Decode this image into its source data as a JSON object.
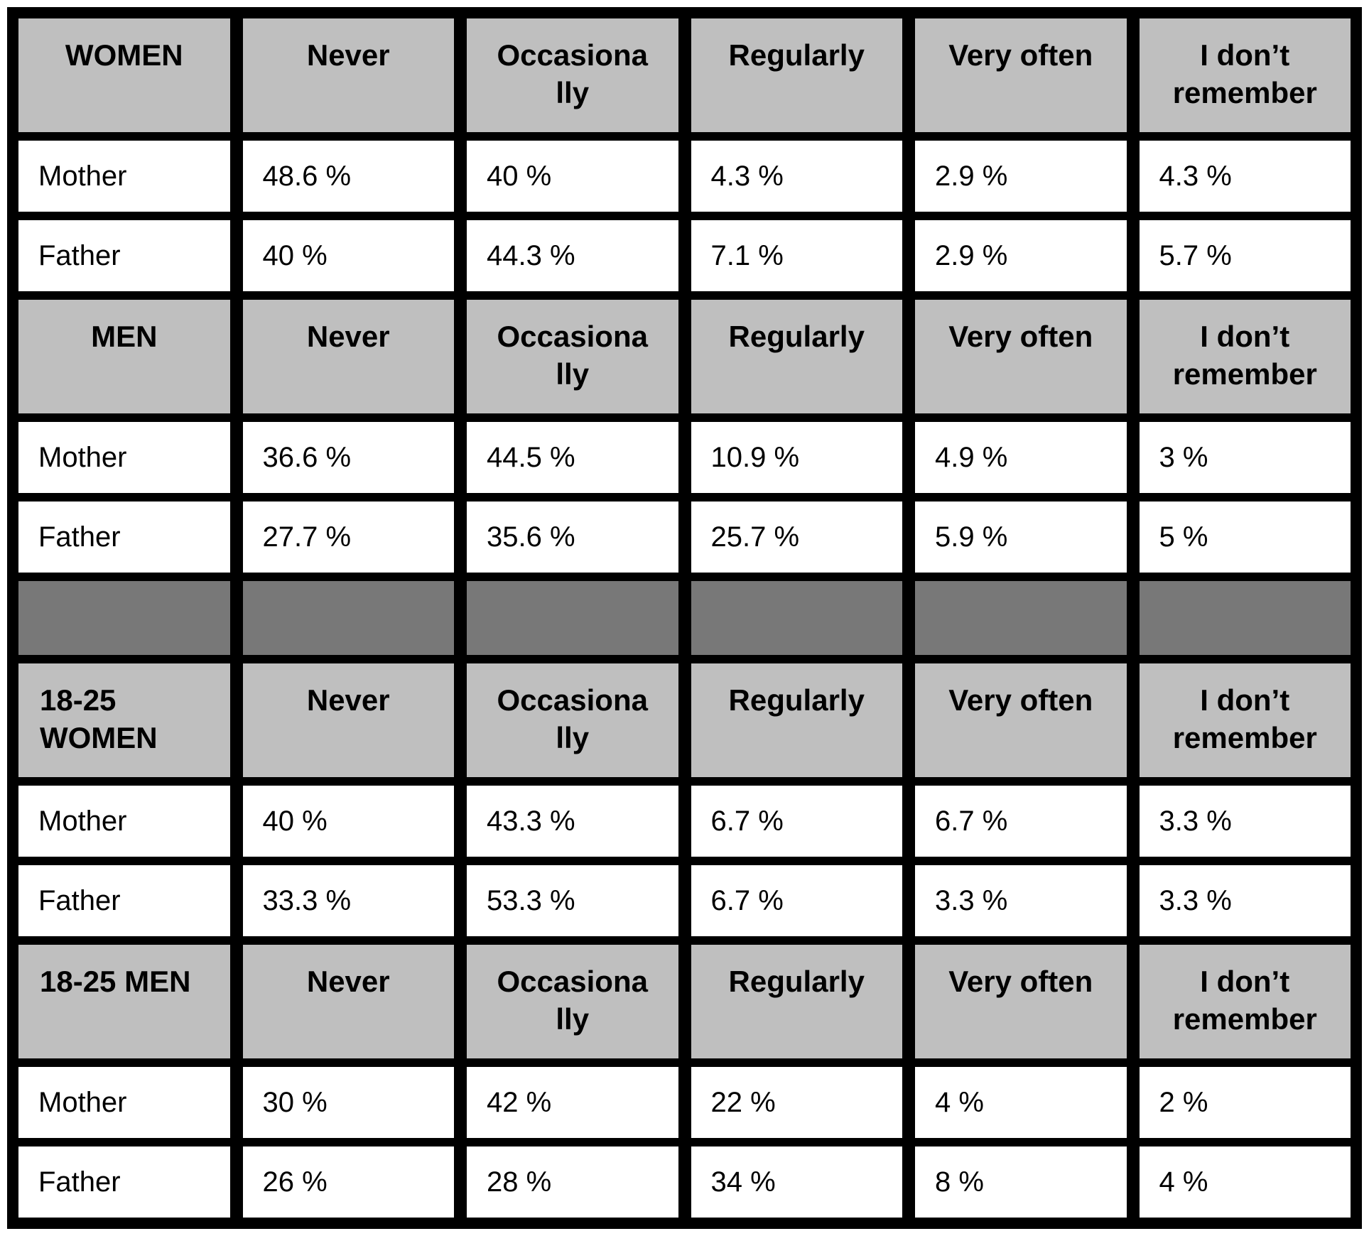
{
  "display": {
    "sections": [
      {
        "group": "WOMEN",
        "columns": [
          "Never",
          "Occasiona\nlly",
          "Regularly",
          "Very often",
          "I don’t\nremember"
        ],
        "rows": [
          {
            "label": "Mother",
            "values": [
              "48.6 %",
              "40 %",
              "4.3 %",
              "2.9 %",
              "4.3 %"
            ]
          },
          {
            "label": "Father",
            "values": [
              "40 %",
              "44.3 %",
              "7.1 %",
              "2.9 %",
              "5.7 %"
            ]
          }
        ]
      },
      {
        "group": "MEN",
        "columns": [
          "Never",
          "Occasiona\nlly",
          "Regularly",
          "Very often",
          "I don’t\nremember"
        ],
        "rows": [
          {
            "label": "Mother",
            "values": [
              "36.6 %",
              "44.5 %",
              "10.9 %",
              "4.9 %",
              "3 %"
            ]
          },
          {
            "label": "Father",
            "values": [
              "27.7 %",
              "35.6 %",
              "25.7 %",
              "5.9 %",
              "5 %"
            ]
          }
        ]
      },
      {
        "group": "18-25\nWOMEN",
        "columns": [
          "Never",
          "Occasiona\nlly",
          "Regularly",
          "Very often",
          "I don’t\nremember"
        ],
        "rows": [
          {
            "label": "Mother",
            "values": [
              "40 %",
              "43.3 %",
              "6.7 %",
              "6.7 %",
              "3.3 %"
            ]
          },
          {
            "label": "Father",
            "values": [
              "33.3 %",
              "53.3 %",
              "6.7 %",
              "3.3 %",
              "3.3 %"
            ]
          }
        ]
      },
      {
        "group": "18-25 MEN",
        "columns": [
          "Never",
          "Occasiona\nlly",
          "Regularly",
          "Very often",
          "I don’t\nremember"
        ],
        "rows": [
          {
            "label": "Mother",
            "values": [
              "30 %",
              "42 %",
              "22 %",
              "4 %",
              "2 %"
            ]
          },
          {
            "label": "Father",
            "values": [
              "26 %",
              "28 %",
              "34 %",
              "8 %",
              "4 %"
            ]
          }
        ]
      }
    ],
    "colors": {
      "header_bg": "#bfbfbf",
      "separator_bg": "#787878",
      "grid_line": "#000000",
      "cell_bg": "#ffffff",
      "text": "#000000"
    }
  },
  "chart_data": {
    "type": "table",
    "unit": "%",
    "answer_options": [
      "Never",
      "Occasionally",
      "Regularly",
      "Very often",
      "I don't remember"
    ],
    "sections": [
      {
        "group": "WOMEN",
        "rows": [
          {
            "label": "Mother",
            "values": [
              48.6,
              40,
              4.3,
              2.9,
              4.3
            ]
          },
          {
            "label": "Father",
            "values": [
              40,
              44.3,
              7.1,
              2.9,
              5.7
            ]
          }
        ]
      },
      {
        "group": "MEN",
        "rows": [
          {
            "label": "Mother",
            "values": [
              36.6,
              44.5,
              10.9,
              4.9,
              3
            ]
          },
          {
            "label": "Father",
            "values": [
              27.7,
              35.6,
              25.7,
              5.9,
              5
            ]
          }
        ]
      },
      {
        "group": "18-25 WOMEN",
        "rows": [
          {
            "label": "Mother",
            "values": [
              40,
              43.3,
              6.7,
              6.7,
              3.3
            ]
          },
          {
            "label": "Father",
            "values": [
              33.3,
              53.3,
              6.7,
              3.3,
              3.3
            ]
          }
        ]
      },
      {
        "group": "18-25 MEN",
        "rows": [
          {
            "label": "Mother",
            "values": [
              30,
              42,
              22,
              4,
              2
            ]
          },
          {
            "label": "Father",
            "values": [
              26,
              28,
              34,
              8,
              4
            ]
          }
        ]
      }
    ]
  }
}
